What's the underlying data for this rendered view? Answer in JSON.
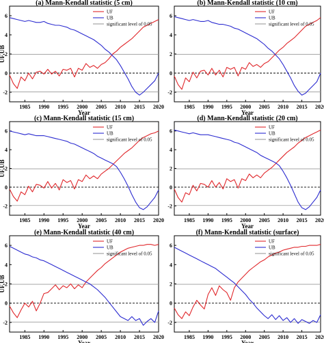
{
  "chart_data": [
    {
      "type": "line",
      "title": "(a) Mann-Kendall statistic (5 cm)",
      "xlabel": "Year",
      "ylabel": "UF,UB",
      "xlim": [
        1981,
        2020
      ],
      "ylim": [
        -3,
        7
      ],
      "x_ticks": [
        1985,
        1990,
        1995,
        2000,
        2005,
        2010,
        2015,
        2020
      ],
      "y_ticks": [
        -2,
        0,
        2,
        4,
        6
      ],
      "x": [
        1981,
        1982,
        1983,
        1984,
        1985,
        1986,
        1987,
        1988,
        1989,
        1990,
        1991,
        1992,
        1993,
        1994,
        1995,
        1996,
        1997,
        1998,
        1999,
        2000,
        2001,
        2002,
        2003,
        2004,
        2005,
        2006,
        2007,
        2008,
        2009,
        2010,
        2011,
        2012,
        2013,
        2014,
        2015,
        2016,
        2017,
        2018,
        2019,
        2020
      ],
      "series": [
        {
          "name": "UF",
          "color": "#e0262a",
          "values": [
            -0.2,
            -1.1,
            -1.6,
            -0.4,
            -0.8,
            0.0,
            -0.6,
            0.1,
            0.2,
            -0.1,
            0.4,
            -0.1,
            0.2,
            -0.3,
            0.4,
            0.3,
            0.5,
            -0.4,
            0.5,
            0.3,
            1.0,
            0.6,
            0.8,
            0.5,
            0.9,
            1.1,
            1.5,
            2.0,
            2.3,
            2.7,
            3.0,
            3.3,
            3.6,
            4.0,
            4.4,
            4.8,
            5.0,
            5.2,
            5.4,
            5.6
          ]
        },
        {
          "name": "UB",
          "color": "#2b2bd0",
          "values": [
            5.8,
            5.7,
            5.6,
            5.5,
            5.4,
            5.5,
            5.4,
            5.3,
            5.3,
            5.4,
            5.2,
            5.1,
            5.0,
            5.0,
            4.9,
            4.8,
            4.6,
            4.5,
            4.3,
            4.1,
            3.9,
            3.7,
            3.5,
            3.2,
            2.9,
            2.5,
            2.2,
            1.8,
            1.4,
            0.8,
            0.1,
            -0.6,
            -1.4,
            -2.0,
            -2.3,
            -2.0,
            -1.6,
            -1.2,
            -0.8,
            0.0
          ]
        }
      ],
      "reference_lines": {
        "values": [
          -1.96,
          1.96
        ],
        "label": "significant level of 0.05",
        "color": "#9a9a9a",
        "zero_line": "dashed"
      },
      "legend": {
        "entries": [
          "UF",
          "UB",
          "significant level of 0.05"
        ],
        "placement": "top-right"
      }
    },
    {
      "type": "line",
      "title": "(b) Mann-Kendall statistic (10 cm)",
      "xlabel": "Year",
      "ylabel": "",
      "xlim": [
        1981,
        2020
      ],
      "ylim": [
        -3,
        7
      ],
      "x_ticks": [
        1985,
        1990,
        1995,
        2000,
        2005,
        2010,
        2015,
        2020
      ],
      "y_ticks": [
        -2,
        0,
        2,
        4,
        6
      ],
      "x": [
        1981,
        1982,
        1983,
        1984,
        1985,
        1986,
        1987,
        1988,
        1989,
        1990,
        1991,
        1992,
        1993,
        1994,
        1995,
        1996,
        1997,
        1998,
        1999,
        2000,
        2001,
        2002,
        2003,
        2004,
        2005,
        2006,
        2007,
        2008,
        2009,
        2010,
        2011,
        2012,
        2013,
        2014,
        2015,
        2016,
        2017,
        2018,
        2019,
        2020
      ],
      "series": [
        {
          "name": "UF",
          "color": "#e0262a",
          "values": [
            -0.3,
            -1.2,
            -1.7,
            -0.5,
            -0.9,
            0.1,
            -0.5,
            0.2,
            0.3,
            -0.2,
            0.5,
            -0.2,
            0.3,
            -0.4,
            0.6,
            0.4,
            0.6,
            -0.3,
            0.6,
            0.4,
            1.1,
            0.7,
            0.9,
            0.6,
            1.0,
            1.2,
            1.6,
            2.0,
            2.4,
            2.7,
            3.1,
            3.4,
            3.7,
            4.1,
            4.5,
            4.9,
            5.1,
            5.3,
            5.5,
            5.8
          ]
        },
        {
          "name": "UB",
          "color": "#2b2bd0",
          "values": [
            5.9,
            5.8,
            5.7,
            5.6,
            5.5,
            5.6,
            5.5,
            5.4,
            5.4,
            5.5,
            5.3,
            5.2,
            5.1,
            5.1,
            5.0,
            4.9,
            4.7,
            4.6,
            4.4,
            4.2,
            4.0,
            3.8,
            3.6,
            3.3,
            3.0,
            2.6,
            2.3,
            1.9,
            1.5,
            0.9,
            0.2,
            -0.5,
            -1.3,
            -1.9,
            -2.3,
            -2.1,
            -1.7,
            -1.3,
            -0.9,
            0.0
          ]
        }
      ],
      "reference_lines": {
        "values": [
          -1.96,
          1.96
        ],
        "label": "significant level of 0.05",
        "color": "#9a9a9a",
        "zero_line": "dashed"
      },
      "legend": {
        "entries": [
          "UF",
          "UB",
          "significant level of 0.05"
        ],
        "placement": "top-right"
      }
    },
    {
      "type": "line",
      "title": "(c) Mann-Kendall statistic (15 cm)",
      "xlabel": "Year",
      "ylabel": "UF,UB",
      "xlim": [
        1981,
        2020
      ],
      "ylim": [
        -3,
        7
      ],
      "x_ticks": [
        1985,
        1990,
        1995,
        2000,
        2005,
        2010,
        2015,
        2020
      ],
      "y_ticks": [
        -2,
        0,
        2,
        4,
        6
      ],
      "x": [
        1981,
        1982,
        1983,
        1984,
        1985,
        1986,
        1987,
        1988,
        1989,
        1990,
        1991,
        1992,
        1993,
        1994,
        1995,
        1996,
        1997,
        1998,
        1999,
        2000,
        2001,
        2002,
        2003,
        2004,
        2005,
        2006,
        2007,
        2008,
        2009,
        2010,
        2011,
        2012,
        2013,
        2014,
        2015,
        2016,
        2017,
        2018,
        2019,
        2020
      ],
      "series": [
        {
          "name": "UF",
          "color": "#e0262a",
          "values": [
            -0.2,
            -1.0,
            -1.5,
            -0.5,
            -0.8,
            0.1,
            -0.5,
            0.3,
            0.2,
            -0.1,
            0.6,
            -0.1,
            0.4,
            -0.3,
            0.8,
            0.5,
            0.7,
            -0.2,
            0.8,
            0.6,
            1.3,
            0.9,
            1.2,
            0.9,
            1.4,
            1.7,
            2.0,
            2.4,
            2.8,
            3.2,
            3.6,
            3.9,
            4.2,
            4.6,
            5.0,
            5.3,
            5.5,
            5.7,
            5.8,
            6.0
          ]
        },
        {
          "name": "UB",
          "color": "#2b2bd0",
          "values": [
            6.0,
            5.9,
            5.8,
            5.7,
            5.6,
            5.7,
            5.6,
            5.5,
            5.5,
            5.5,
            5.4,
            5.3,
            5.2,
            5.1,
            5.0,
            4.9,
            4.7,
            4.6,
            4.4,
            4.2,
            4.0,
            3.8,
            3.6,
            3.3,
            3.1,
            2.9,
            2.7,
            2.5,
            2.2,
            1.6,
            0.9,
            0.1,
            -0.8,
            -1.6,
            -2.2,
            -2.4,
            -2.1,
            -1.6,
            -1.1,
            -0.3
          ]
        }
      ],
      "reference_lines": {
        "values": [
          -1.96,
          1.96
        ],
        "label": "significant level of 0.05",
        "color": "#9a9a9a",
        "zero_line": "dashed"
      },
      "legend": {
        "entries": [
          "UF",
          "UB",
          "significant level of 0.05"
        ],
        "placement": "top-right"
      }
    },
    {
      "type": "line",
      "title": "(d) Mann-Kendall statistic (20 cm)",
      "xlabel": "Year",
      "ylabel": "",
      "xlim": [
        1981,
        2020
      ],
      "ylim": [
        -3,
        7
      ],
      "x_ticks": [
        1985,
        1990,
        1995,
        2000,
        2005,
        2010,
        2015,
        2020
      ],
      "y_ticks": [
        -2,
        0,
        2,
        4,
        6
      ],
      "x": [
        1981,
        1982,
        1983,
        1984,
        1985,
        1986,
        1987,
        1988,
        1989,
        1990,
        1991,
        1992,
        1993,
        1994,
        1995,
        1996,
        1997,
        1998,
        1999,
        2000,
        2001,
        2002,
        2003,
        2004,
        2005,
        2006,
        2007,
        2008,
        2009,
        2010,
        2011,
        2012,
        2013,
        2014,
        2015,
        2016,
        2017,
        2018,
        2019,
        2020
      ],
      "series": [
        {
          "name": "UF",
          "color": "#e0262a",
          "values": [
            -0.2,
            -1.1,
            -1.6,
            -0.6,
            -0.8,
            0.2,
            -0.4,
            0.4,
            0.3,
            0.0,
            0.7,
            0.0,
            0.5,
            -0.2,
            0.9,
            0.6,
            0.8,
            -0.1,
            0.9,
            0.7,
            1.4,
            1.0,
            1.3,
            1.0,
            1.5,
            1.8,
            2.1,
            2.5,
            2.9,
            3.3,
            3.7,
            4.0,
            4.3,
            4.7,
            5.0,
            5.3,
            5.5,
            5.7,
            5.9,
            6.1
          ]
        },
        {
          "name": "UB",
          "color": "#2b2bd0",
          "values": [
            6.1,
            6.0,
            5.9,
            5.8,
            5.7,
            5.8,
            5.7,
            5.6,
            5.6,
            5.6,
            5.5,
            5.4,
            5.3,
            5.2,
            5.1,
            5.0,
            4.8,
            4.7,
            4.5,
            4.3,
            4.1,
            3.9,
            3.7,
            3.4,
            3.2,
            3.0,
            2.8,
            2.6,
            2.3,
            1.7,
            1.0,
            0.2,
            -0.7,
            -1.6,
            -2.2,
            -2.4,
            -2.1,
            -1.6,
            -1.1,
            -0.3
          ]
        }
      ],
      "reference_lines": {
        "values": [
          -1.96,
          1.96
        ],
        "label": "significant level of 0.05",
        "color": "#9a9a9a",
        "zero_line": "dashed"
      },
      "legend": {
        "entries": [
          "UF",
          "UB",
          "significant level of 0.05"
        ],
        "placement": "top-right"
      }
    },
    {
      "type": "line",
      "title": "(e) Mann-Kendall statistic (40 cm)",
      "xlabel": "Year",
      "ylabel": "UF,UB",
      "xlim": [
        1981,
        2020
      ],
      "ylim": [
        -3,
        7
      ],
      "x_ticks": [
        1985,
        1990,
        1995,
        2000,
        2005,
        2010,
        2015,
        2020
      ],
      "y_ticks": [
        -2,
        0,
        2,
        4,
        6
      ],
      "x": [
        1981,
        1982,
        1983,
        1984,
        1985,
        1986,
        1987,
        1988,
        1989,
        1990,
        1991,
        1992,
        1993,
        1994,
        1995,
        1996,
        1997,
        1998,
        1999,
        2000,
        2001,
        2002,
        2003,
        2004,
        2005,
        2006,
        2007,
        2008,
        2009,
        2010,
        2011,
        2012,
        2013,
        2014,
        2015,
        2016,
        2017,
        2018,
        2019,
        2020
      ],
      "series": [
        {
          "name": "UF",
          "color": "#e0262a",
          "values": [
            -0.3,
            -1.0,
            -1.5,
            -0.7,
            0.0,
            -0.4,
            0.2,
            -0.8,
            0.0,
            1.0,
            1.1,
            1.5,
            1.9,
            1.4,
            1.8,
            1.6,
            2.0,
            1.5,
            1.9,
            1.6,
            2.2,
            2.6,
            3.0,
            3.4,
            3.7,
            4.1,
            4.4,
            4.7,
            5.0,
            5.3,
            5.5,
            5.7,
            5.8,
            5.9,
            6.0,
            6.0,
            6.1,
            6.1,
            6.0,
            6.1
          ]
        },
        {
          "name": "UB",
          "color": "#2b2bd0",
          "values": [
            5.9,
            5.7,
            5.5,
            5.3,
            5.1,
            5.0,
            4.8,
            4.7,
            4.5,
            4.4,
            4.2,
            4.0,
            3.8,
            3.6,
            3.4,
            3.2,
            3.0,
            2.8,
            2.6,
            2.4,
            2.2,
            2.0,
            1.7,
            1.4,
            1.0,
            0.6,
            0.1,
            -0.4,
            -0.9,
            -1.4,
            -1.6,
            -1.8,
            -1.4,
            -1.8,
            -1.6,
            -2.3,
            -1.9,
            -1.6,
            -2.0,
            -0.8
          ]
        }
      ],
      "reference_lines": {
        "values": [
          -1.96,
          1.96
        ],
        "label": "significant level of 0.05",
        "color": "#9a9a9a",
        "zero_line": "dashed"
      },
      "legend": {
        "entries": [
          "UF",
          "UB",
          "significant level of 0.05"
        ],
        "placement": "top-right"
      }
    },
    {
      "type": "line",
      "title": "(f) Mann-Kendall statistic (surface)",
      "xlabel": "Year",
      "ylabel": "",
      "xlim": [
        1981,
        2020
      ],
      "ylim": [
        -3,
        7
      ],
      "x_ticks": [
        1985,
        1990,
        1995,
        2000,
        2005,
        2010,
        2015,
        2020
      ],
      "y_ticks": [
        -2,
        0,
        2,
        4,
        6
      ],
      "x": [
        1981,
        1982,
        1983,
        1984,
        1985,
        1986,
        1987,
        1988,
        1989,
        1990,
        1991,
        1992,
        1993,
        1994,
        1995,
        1996,
        1997,
        1998,
        1999,
        2000,
        2001,
        2002,
        2003,
        2004,
        2005,
        2006,
        2007,
        2008,
        2009,
        2010,
        2011,
        2012,
        2013,
        2014,
        2015,
        2016,
        2017,
        2018,
        2019,
        2020
      ],
      "series": [
        {
          "name": "UF",
          "color": "#e0262a",
          "values": [
            -0.5,
            -1.2,
            -1.6,
            -0.9,
            -1.3,
            -0.4,
            0.3,
            -0.2,
            -0.6,
            0.9,
            1.6,
            0.8,
            1.8,
            1.4,
            1.1,
            0.3,
            1.6,
            2.2,
            2.6,
            3.0,
            3.4,
            3.7,
            4.0,
            4.3,
            4.5,
            4.8,
            5.0,
            5.2,
            5.3,
            5.5,
            5.6,
            5.7,
            5.8,
            5.8,
            5.9,
            5.9,
            6.0,
            6.0,
            6.0,
            6.1
          ]
        },
        {
          "name": "UB",
          "color": "#2b2bd0",
          "values": [
            5.8,
            5.6,
            5.4,
            5.2,
            5.0,
            4.8,
            4.6,
            4.4,
            4.2,
            4.0,
            3.8,
            3.6,
            3.3,
            3.0,
            2.7,
            2.4,
            2.1,
            1.7,
            1.3,
            0.9,
            0.4,
            0.0,
            -0.5,
            -0.9,
            -1.3,
            -1.6,
            -1.2,
            -1.7,
            -1.3,
            -1.8,
            -1.5,
            -2.0,
            -1.6,
            -2.1,
            -1.7,
            -1.9,
            -2.1,
            -1.8,
            -2.0,
            -1.2
          ]
        }
      ],
      "reference_lines": {
        "values": [
          -1.96,
          1.96
        ],
        "label": "significant level of 0.05",
        "color": "#9a9a9a",
        "zero_line": "dashed"
      },
      "legend": {
        "entries": [
          "UF",
          "UB",
          "significant level of 0.05"
        ],
        "placement": "top-right"
      }
    }
  ]
}
